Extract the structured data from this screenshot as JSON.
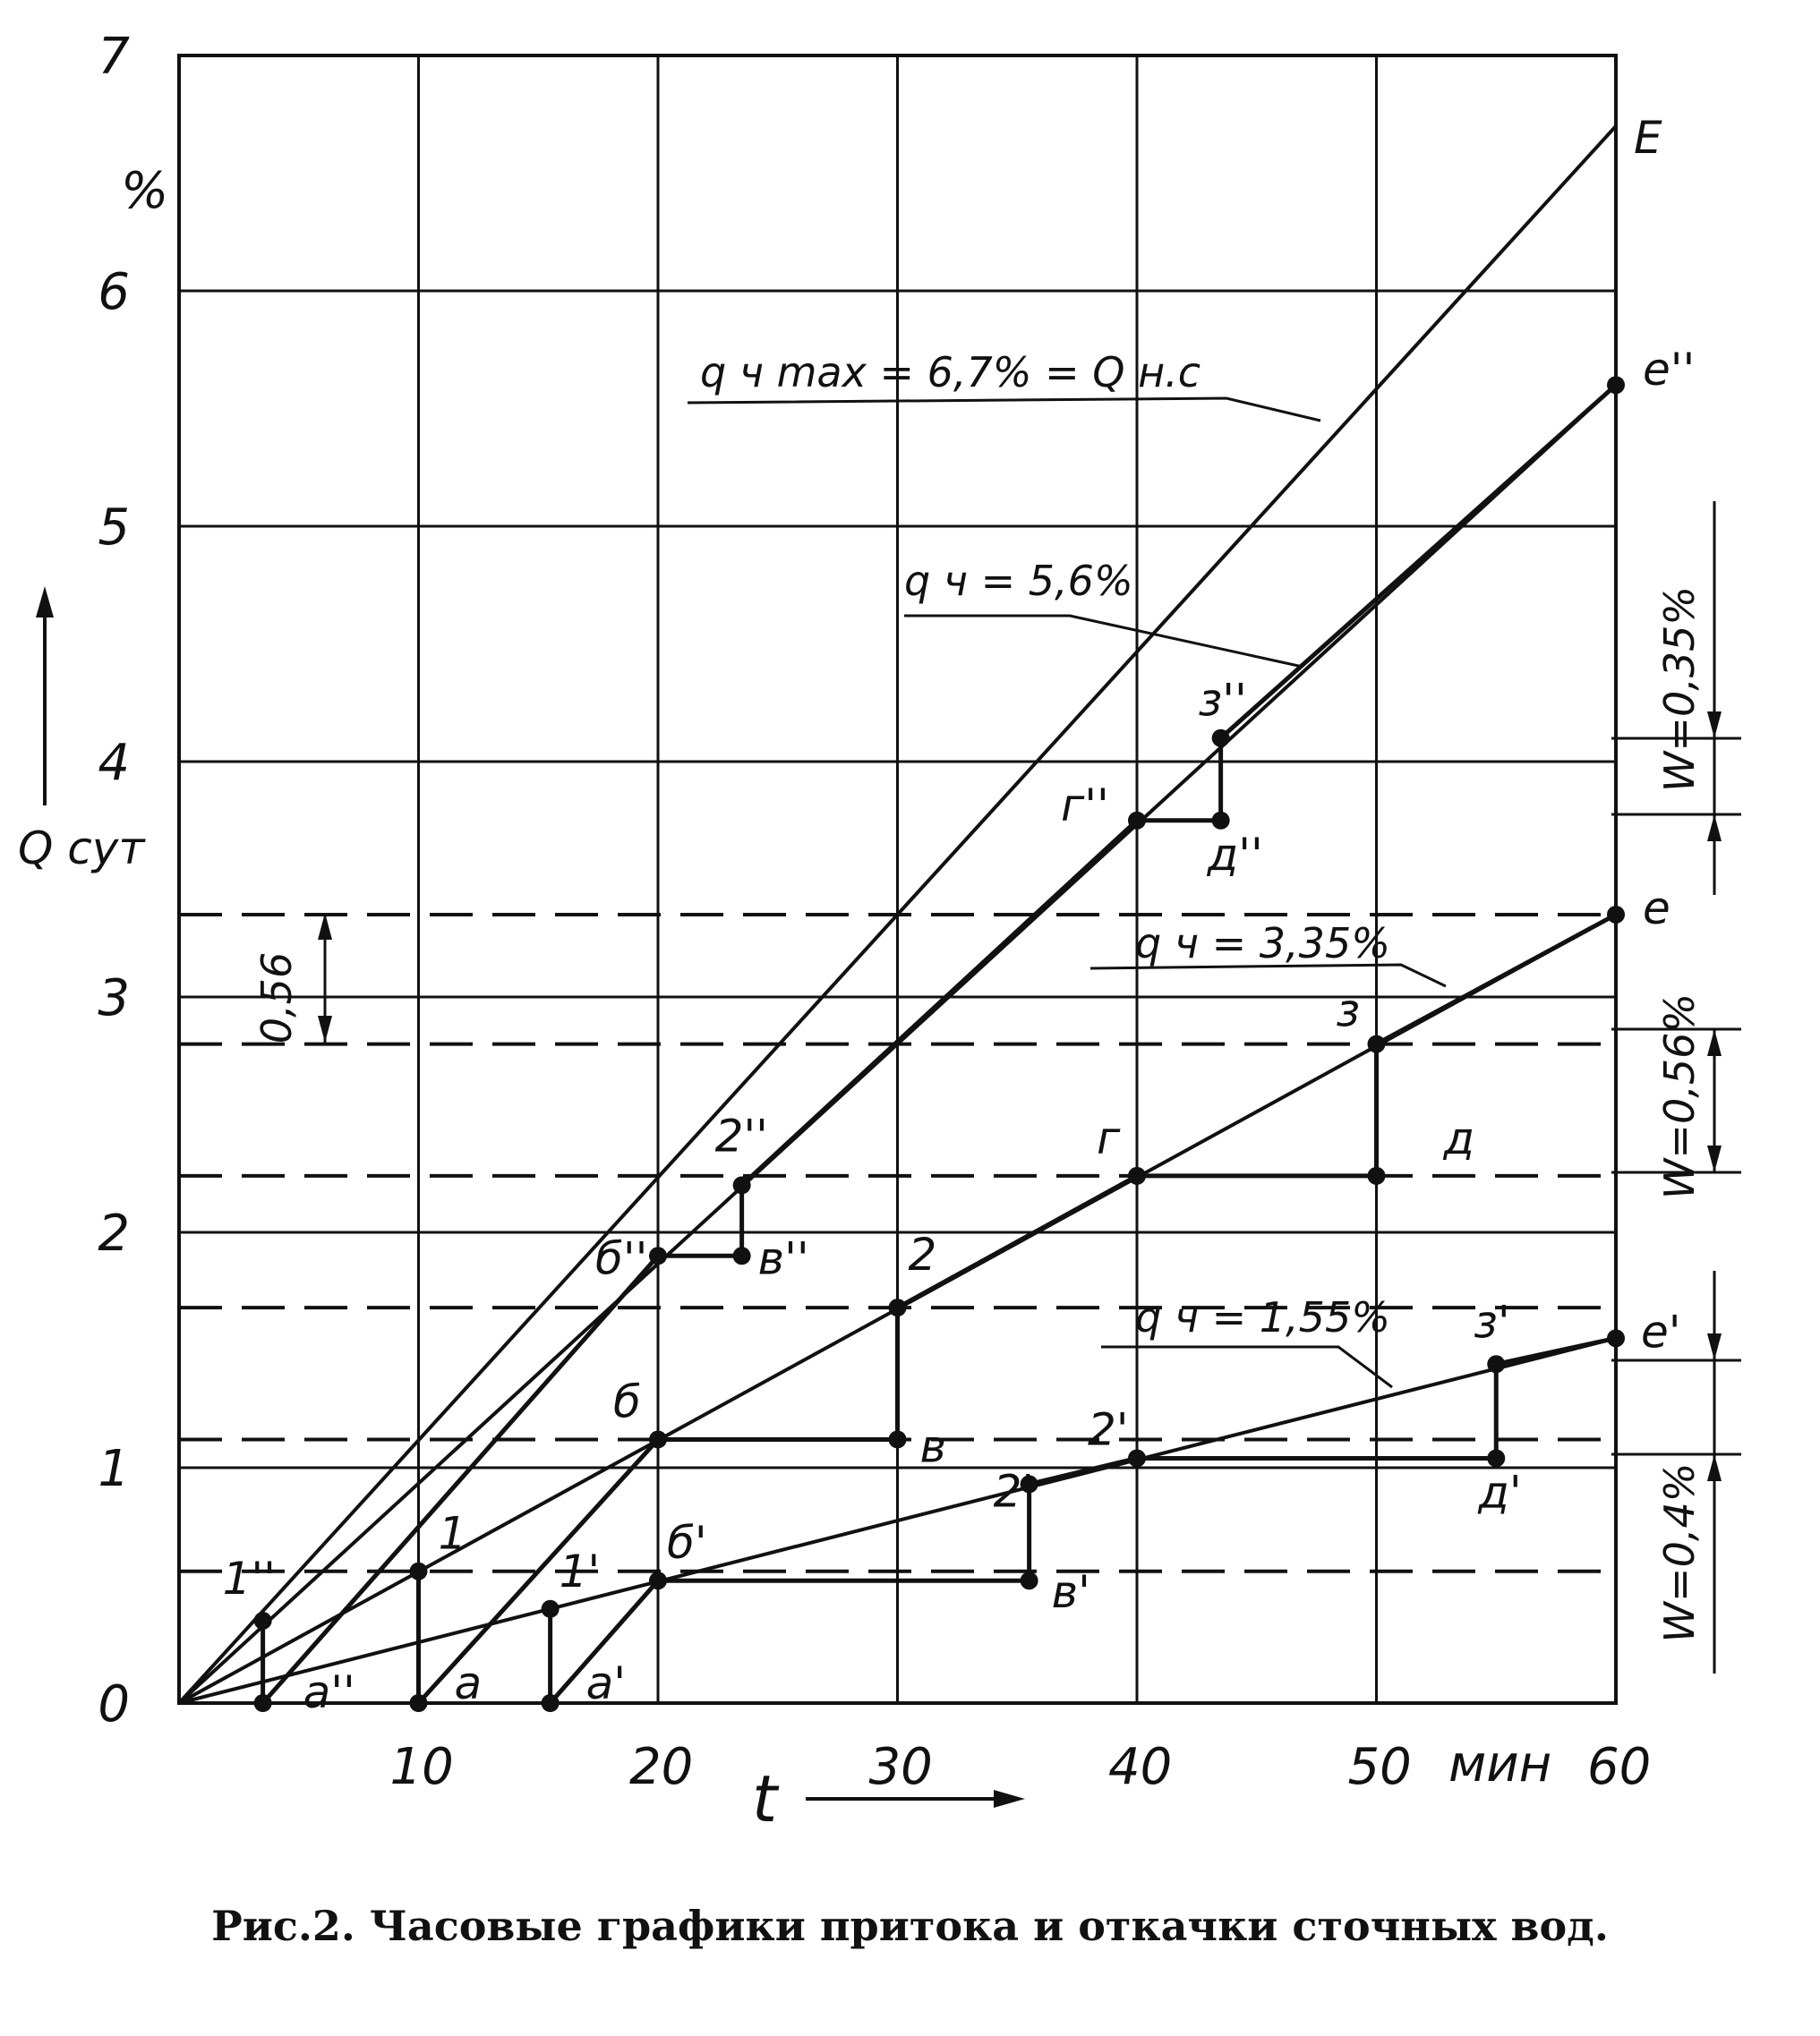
{
  "caption": "Рис.2. Часовые графики притока и откачки сточных вод.",
  "chart_data": {
    "type": "line",
    "ylabel": "Q сут",
    "yunit": "%",
    "xlabel": "t",
    "xunit": "мин",
    "xlim": [
      0,
      60
    ],
    "ylim": [
      0,
      7
    ],
    "xticks": [
      "10",
      "20",
      "30",
      "40",
      "50",
      "60"
    ],
    "yticks": [
      "0",
      "1",
      "2",
      "3",
      "4",
      "5",
      "6",
      "7"
    ],
    "grid": true,
    "annotations": {
      "qmax": "q ч max = 6,7% = Q н.с",
      "q56": "q ч = 5,6%",
      "q335": "q ч = 3,35%",
      "q155": "q ч = 1,55%",
      "w035": "W=0,35%",
      "w056": "W=0,56%",
      "w04": "W=0,4%",
      "d056": "0,56"
    },
    "series": [
      {
        "name": "q ч max = 6,7% = Q н.с",
        "x": [
          0,
          60
        ],
        "y": [
          0,
          6.7
        ]
      },
      {
        "name": "q ч = 5,6%",
        "x": [
          0,
          60
        ],
        "y": [
          0,
          5.6
        ]
      },
      {
        "name": "q ч = 3,35%",
        "x": [
          0,
          60
        ],
        "y": [
          0,
          3.35
        ]
      },
      {
        "name": "q ч = 1,55%",
        "x": [
          0,
          60
        ],
        "y": [
          0,
          1.55
        ]
      }
    ],
    "pumping": [
      {
        "points": [
          [
            3.5,
            0.35
          ],
          [
            3.5,
            0
          ],
          [
            20,
            1.9
          ],
          [
            23.5,
            1.9
          ],
          [
            23.5,
            2.2
          ],
          [
            40,
            3.75
          ],
          [
            43.5,
            3.75
          ],
          [
            43.5,
            4.1
          ],
          [
            60,
            5.6
          ]
        ]
      },
      {
        "points": [
          [
            10,
            0.56
          ],
          [
            10,
            0
          ],
          [
            20,
            1.12
          ],
          [
            30,
            1.12
          ],
          [
            30,
            1.68
          ],
          [
            40,
            2.24
          ],
          [
            50,
            2.24
          ],
          [
            50,
            2.8
          ],
          [
            60,
            3.35
          ]
        ]
      },
      {
        "points": [
          [
            15.5,
            0.4
          ],
          [
            15.5,
            0
          ],
          [
            20,
            0.52
          ],
          [
            35.5,
            0.52
          ],
          [
            35.5,
            0.93
          ],
          [
            40,
            1.04
          ],
          [
            55,
            1.04
          ],
          [
            55,
            1.44
          ],
          [
            60,
            1.55
          ]
        ]
      }
    ],
    "dashed_levels": [
      0.56,
      1.12,
      1.68,
      2.24,
      2.8,
      3.35
    ],
    "point_labels": [
      {
        "text": "E",
        "x": 60,
        "y": 6.7
      },
      {
        "text": "е''",
        "x": 60,
        "y": 5.6
      },
      {
        "text": "з''",
        "x": 43.5,
        "y": 4.1
      },
      {
        "text": "г''",
        "x": 40,
        "y": 3.75
      },
      {
        "text": "д''",
        "x": 43.5,
        "y": 3.75
      },
      {
        "text": "е",
        "x": 60,
        "y": 3.35
      },
      {
        "text": "з",
        "x": 50,
        "y": 2.8
      },
      {
        "text": "г",
        "x": 40,
        "y": 2.24
      },
      {
        "text": "д",
        "x": 50,
        "y": 2.24
      },
      {
        "text": "2''",
        "x": 23.5,
        "y": 2.2
      },
      {
        "text": "б''",
        "x": 20,
        "y": 1.9
      },
      {
        "text": "в''",
        "x": 23.5,
        "y": 1.9
      },
      {
        "text": "2",
        "x": 30,
        "y": 1.68
      },
      {
        "text": "б",
        "x": 20,
        "y": 1.12
      },
      {
        "text": "в",
        "x": 30,
        "y": 1.12
      },
      {
        "text": "з'",
        "x": 55,
        "y": 1.44
      },
      {
        "text": "е'",
        "x": 60,
        "y": 1.55
      },
      {
        "text": "2'",
        "x": 40,
        "y": 1.04
      },
      {
        "text": "д'",
        "x": 55,
        "y": 1.04
      },
      {
        "text": "2'",
        "x": 35.5,
        "y": 0.93
      },
      {
        "text": "в'",
        "x": 35.5,
        "y": 0.52
      },
      {
        "text": "б'",
        "x": 20,
        "y": 0.52
      },
      {
        "text": "1",
        "x": 10,
        "y": 0.56
      },
      {
        "text": "1'",
        "x": 15.5,
        "y": 0.4
      },
      {
        "text": "1''",
        "x": 3.5,
        "y": 0.35
      },
      {
        "text": "а''",
        "x": 3.5,
        "y": 0
      },
      {
        "text": "а",
        "x": 10,
        "y": 0
      },
      {
        "text": "а'",
        "x": 15.5,
        "y": 0
      }
    ]
  }
}
